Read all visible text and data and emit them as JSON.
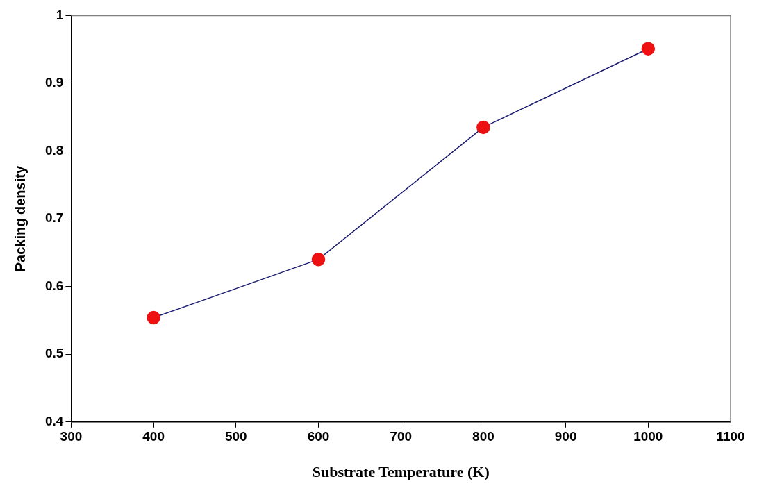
{
  "chart_data": {
    "type": "line",
    "xlabel": "Substrate Temperature (K)",
    "ylabel": "Packing density",
    "x": [
      400,
      600,
      800,
      1000
    ],
    "series": [
      {
        "color": "#ee1111",
        "values": [
          0.554,
          0.64,
          0.835,
          0.951
        ]
      }
    ],
    "xlim": [
      300,
      1100
    ],
    "xticks": [
      300,
      400,
      500,
      600,
      700,
      800,
      900,
      1000,
      1100
    ],
    "ylim": [
      0.4,
      1
    ],
    "yticks": [
      0.4,
      0.5,
      0.6,
      0.7,
      0.8,
      0.9,
      1
    ],
    "grid": false,
    "legend": false,
    "marker": "circle",
    "line_style": "solid"
  }
}
